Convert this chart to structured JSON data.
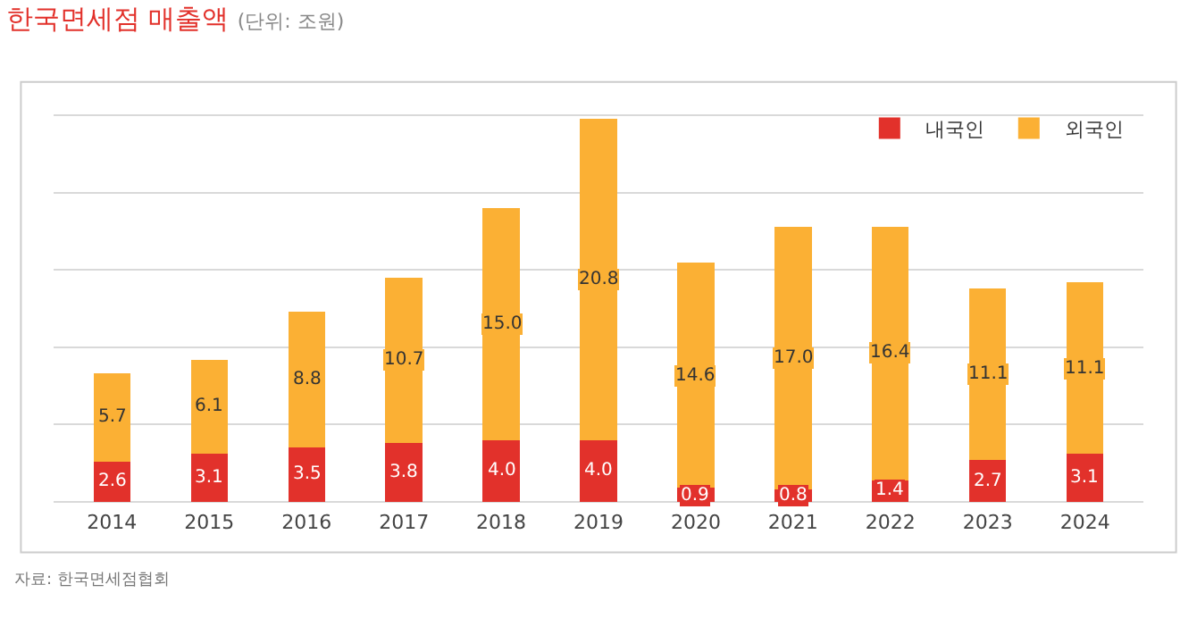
{
  "chart_data": {
    "type": "bar",
    "title": "한국면세점 매출액",
    "subtitle": "(단위: 조원)",
    "categories": [
      "2014",
      "2015",
      "2016",
      "2017",
      "2018",
      "2019",
      "2020",
      "2021",
      "2022",
      "2023",
      "2024"
    ],
    "series": [
      {
        "name": "내국인",
        "color": "#e2312b",
        "values": [
          2.6,
          3.1,
          3.5,
          3.8,
          4.0,
          4.0,
          0.9,
          0.8,
          1.4,
          2.7,
          3.1
        ],
        "value_labels": [
          "2.6",
          "3.1",
          "3.5",
          "3.8",
          "4.0",
          "4.0",
          "0.9",
          "0.8",
          "1.4",
          "2.7",
          "3.1"
        ]
      },
      {
        "name": "외국인",
        "color": "#fbb034",
        "values": [
          5.7,
          6.1,
          8.8,
          10.7,
          15.0,
          20.8,
          14.6,
          17.0,
          16.4,
          11.1,
          11.1
        ],
        "value_labels": [
          "5.7",
          "6.1",
          "8.8",
          "10.7",
          "15.0",
          "20.8",
          "14.6",
          "17.0",
          "16.4",
          "11.1",
          "11.1"
        ]
      }
    ],
    "stacked": true,
    "grid": "y",
    "legend": "top right",
    "tick_labels": "x",
    "annotations": [
      "자료: 한국면세점협회"
    ]
  }
}
